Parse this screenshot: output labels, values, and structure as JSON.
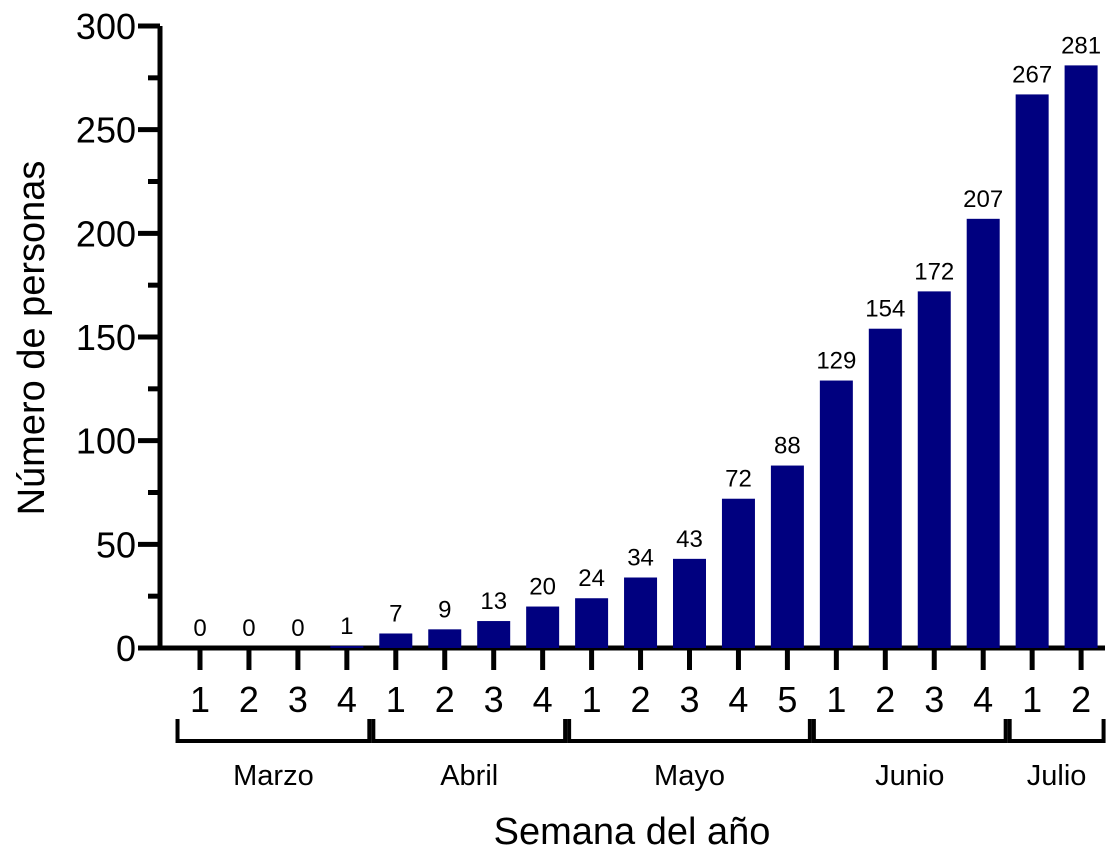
{
  "chart_data": {
    "type": "bar",
    "title": "",
    "xlabel": "Semana del año",
    "ylabel": "Número de personas",
    "ylim": [
      0,
      300
    ],
    "yticks": [
      "0",
      "50",
      "100",
      "150",
      "200",
      "250",
      "300"
    ],
    "grid": false,
    "colors": {
      "bar": "#00007f",
      "axis": "#000000",
      "text": "#000000"
    },
    "categories": [
      "1",
      "2",
      "3",
      "4",
      "1",
      "2",
      "3",
      "4",
      "1",
      "2",
      "3",
      "4",
      "5",
      "1",
      "2",
      "3",
      "4",
      "1",
      "2"
    ],
    "values": [
      0,
      0,
      0,
      1,
      7,
      9,
      13,
      20,
      24,
      34,
      43,
      72,
      88,
      129,
      154,
      172,
      207,
      267,
      281
    ],
    "value_labels": [
      "0",
      "0",
      "0",
      "1",
      "7",
      "9",
      "13",
      "20",
      "24",
      "34",
      "43",
      "72",
      "88",
      "129",
      "154",
      "172",
      "207",
      "267",
      "281"
    ],
    "groups": [
      {
        "label": "Marzo",
        "start": 0,
        "end": 3
      },
      {
        "label": "Abril",
        "start": 4,
        "end": 7
      },
      {
        "label": "Mayo",
        "start": 8,
        "end": 12
      },
      {
        "label": "Junio",
        "start": 13,
        "end": 16
      },
      {
        "label": "Julio",
        "start": 17,
        "end": 18
      }
    ]
  }
}
